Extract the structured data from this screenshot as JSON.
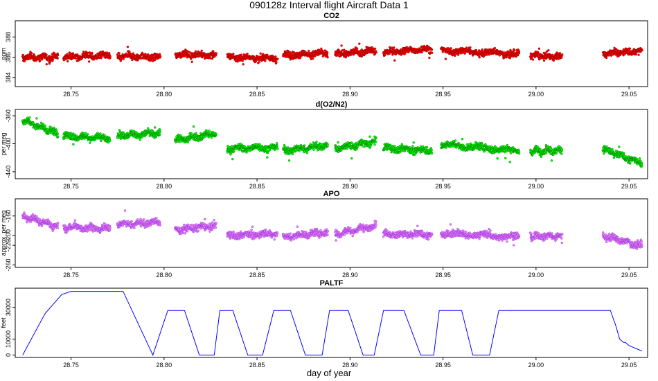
{
  "figure": {
    "title": "090128z   Interval flight Aircraft Data 1",
    "xlabel": "day of year"
  },
  "chart_data": [
    {
      "type": "scatter",
      "title": "CO2",
      "ylabel": "ppm",
      "xlim": [
        28.72,
        29.06
      ],
      "ylim": [
        383.1,
        389.6
      ],
      "yticks": [
        384,
        386,
        388
      ],
      "xticks": [
        28.75,
        28.8,
        28.85,
        28.9,
        28.95,
        29.0,
        29.05
      ],
      "xtick_labels": [
        "28.75",
        "28.80",
        "28.85",
        "28.90",
        "28.95",
        "29.00",
        "29.05"
      ],
      "point_color": "#ff0000",
      "point_edge": "#8b0000",
      "segments": [
        {
          "x": [
            28.724,
            28.743
          ],
          "y": [
            386.0,
            386.0
          ]
        },
        {
          "x": [
            28.746,
            28.771
          ],
          "y": [
            386.0,
            386.2
          ]
        },
        {
          "x": [
            28.775,
            28.798
          ],
          "y": [
            386.1,
            386.0
          ]
        },
        {
          "x": [
            28.806,
            28.828
          ],
          "y": [
            386.3,
            386.2
          ]
        },
        {
          "x": [
            28.834,
            28.861
          ],
          "y": [
            386.0,
            385.9
          ]
        },
        {
          "x": [
            28.864,
            28.888
          ],
          "y": [
            386.2,
            386.4
          ]
        },
        {
          "x": [
            28.892,
            28.914
          ],
          "y": [
            386.3,
            386.7
          ]
        },
        {
          "x": [
            28.918,
            28.944
          ],
          "y": [
            386.5,
            386.8
          ]
        },
        {
          "x": [
            28.949,
            28.991
          ],
          "y": [
            386.7,
            386.3
          ]
        },
        {
          "x": [
            28.997,
            29.014
          ],
          "y": [
            386.2,
            386.0
          ]
        },
        {
          "x": [
            29.036,
            29.057
          ],
          "y": [
            386.4,
            386.6
          ]
        }
      ]
    },
    {
      "type": "scatter",
      "title": "d(O2/N2)",
      "ylabel": "per meg",
      "xlim": [
        28.72,
        29.06
      ],
      "ylim": [
        -450,
        -351
      ],
      "yticks": [
        -360,
        -400,
        -440
      ],
      "ytick_labels": [
        "-360",
        "-400",
        "-440"
      ],
      "xticks": [
        28.75,
        28.8,
        28.85,
        28.9,
        28.95,
        29.0,
        29.05
      ],
      "xtick_labels": [
        "28.75",
        "28.80",
        "28.85",
        "28.90",
        "28.95",
        "29.00",
        "29.05"
      ],
      "point_color": "#00ff00",
      "point_edge": "#006400",
      "segments": [
        {
          "x": [
            28.724,
            28.743
          ],
          "y": [
            -366,
            -386
          ]
        },
        {
          "x": [
            28.746,
            28.771
          ],
          "y": [
            -389,
            -392
          ]
        },
        {
          "x": [
            28.775,
            28.798
          ],
          "y": [
            -388,
            -385
          ]
        },
        {
          "x": [
            28.806,
            28.828
          ],
          "y": [
            -395,
            -385
          ]
        },
        {
          "x": [
            28.834,
            28.861
          ],
          "y": [
            -407,
            -405
          ]
        },
        {
          "x": [
            28.864,
            28.888
          ],
          "y": [
            -410,
            -402
          ]
        },
        {
          "x": [
            28.892,
            28.914
          ],
          "y": [
            -407,
            -397
          ]
        },
        {
          "x": [
            28.918,
            28.944
          ],
          "y": [
            -406,
            -410
          ]
        },
        {
          "x": [
            28.949,
            28.991
          ],
          "y": [
            -401,
            -410
          ]
        },
        {
          "x": [
            28.997,
            29.014
          ],
          "y": [
            -410,
            -410
          ]
        },
        {
          "x": [
            29.036,
            29.057
          ],
          "y": [
            -408,
            -428
          ]
        }
      ]
    },
    {
      "type": "scatter",
      "title": "APO",
      "ylabel": "approx. per meg",
      "xlim": [
        28.72,
        29.06
      ],
      "ylim": [
        -265,
        -125
      ],
      "yticks": [
        -160,
        -200,
        -220,
        -260
      ],
      "ytick_labels": [
        "-160",
        "-200",
        "-220",
        "-260"
      ],
      "xticks": [
        28.75,
        28.8,
        28.85,
        28.9,
        28.95,
        29.0,
        29.05
      ],
      "xtick_labels": [
        "28.75",
        "28.80",
        "28.85",
        "28.90",
        "28.95",
        "29.00",
        "29.05"
      ],
      "point_color": "#ee82ee",
      "point_edge": "#8a2be2",
      "segments": [
        {
          "x": [
            28.724,
            28.743
          ],
          "y": [
            -160,
            -182
          ]
        },
        {
          "x": [
            28.746,
            28.771
          ],
          "y": [
            -183,
            -185
          ]
        },
        {
          "x": [
            28.775,
            28.798
          ],
          "y": [
            -177,
            -173
          ]
        },
        {
          "x": [
            28.806,
            28.828
          ],
          "y": [
            -188,
            -180
          ]
        },
        {
          "x": [
            28.834,
            28.861
          ],
          "y": [
            -200,
            -196
          ]
        },
        {
          "x": [
            28.864,
            28.888
          ],
          "y": [
            -203,
            -193
          ]
        },
        {
          "x": [
            28.892,
            28.914
          ],
          "y": [
            -197,
            -180
          ]
        },
        {
          "x": [
            28.918,
            28.944
          ],
          "y": [
            -197,
            -198
          ]
        },
        {
          "x": [
            28.949,
            28.991
          ],
          "y": [
            -195,
            -203
          ]
        },
        {
          "x": [
            28.997,
            29.014
          ],
          "y": [
            -202,
            -201
          ]
        },
        {
          "x": [
            29.036,
            29.057
          ],
          "y": [
            -200,
            -222
          ]
        }
      ]
    },
    {
      "type": "line",
      "title": "PALTF",
      "ylabel": "feet",
      "xlim": [
        28.72,
        29.06
      ],
      "ylim": [
        -1500,
        42000
      ],
      "yticks": [
        0,
        10000,
        30000
      ],
      "ytick_labels": [
        "0",
        "10000",
        "30000"
      ],
      "xticks": [
        28.75,
        28.8,
        28.85,
        28.9,
        28.95,
        29.0,
        29.05
      ],
      "xtick_labels": [
        "28.75",
        "28.80",
        "28.85",
        "28.90",
        "28.95",
        "29.00",
        "29.05"
      ],
      "line_color": "#0000ff",
      "x": [
        28.724,
        28.736,
        28.745,
        28.75,
        28.766,
        28.778,
        28.794,
        28.802,
        28.806,
        28.811,
        28.819,
        28.827,
        28.83,
        28.834,
        28.837,
        28.845,
        28.853,
        28.859,
        28.864,
        28.868,
        28.876,
        28.885,
        28.889,
        28.894,
        28.899,
        28.907,
        28.913,
        28.918,
        28.923,
        28.929,
        28.938,
        28.945,
        28.948,
        28.954,
        28.96,
        28.966,
        28.969,
        28.975,
        28.98,
        28.989,
        29.0,
        29.02,
        29.04,
        29.043,
        29.045,
        29.047,
        29.048,
        29.05,
        29.052,
        29.055,
        29.057
      ],
      "y": [
        0,
        26000,
        38000,
        40000,
        40000,
        40000,
        0,
        28000,
        28000,
        28000,
        0,
        0,
        28000,
        28000,
        28000,
        0,
        0,
        28000,
        28000,
        28000,
        0,
        0,
        28000,
        28000,
        28000,
        0,
        0,
        28000,
        28000,
        28000,
        0,
        0,
        28000,
        28000,
        28000,
        0,
        0,
        0,
        28000,
        28000,
        28000,
        28000,
        28000,
        18000,
        10000,
        8000,
        8000,
        6000,
        5000,
        3500,
        2500
      ]
    }
  ]
}
